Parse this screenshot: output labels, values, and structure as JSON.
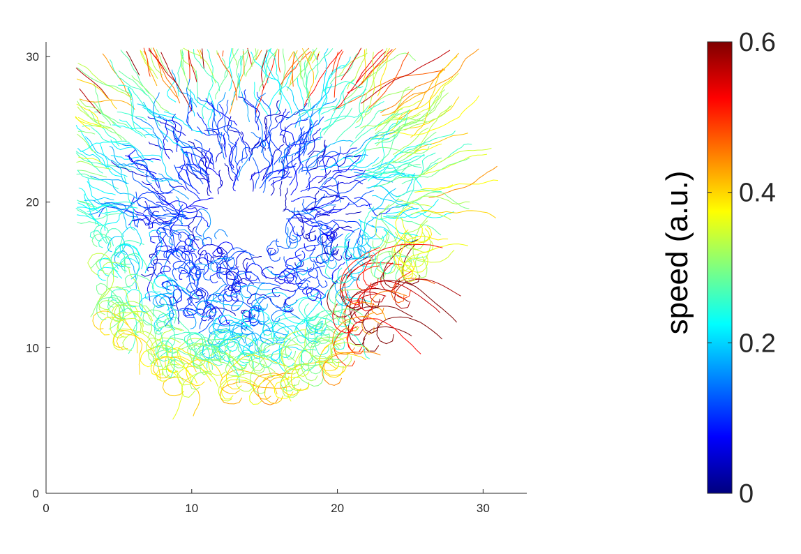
{
  "chart_data": {
    "type": "line",
    "title": "",
    "xlabel": "",
    "ylabel": "",
    "xlim": [
      0,
      33
    ],
    "ylim": [
      0,
      31
    ],
    "x_ticks": [
      0,
      10,
      20,
      30
    ],
    "y_ticks": [
      0,
      10,
      20,
      30
    ],
    "x_tick_labels": [
      "0",
      "10",
      "20",
      "30"
    ],
    "y_tick_labels": [
      "0",
      "10",
      "20",
      "30"
    ],
    "grid": false,
    "box": false,
    "colormap": "jet",
    "colorbar": {
      "label": "speed (a.u.)",
      "range": [
        0,
        0.6
      ],
      "ticks": [
        0,
        0.2,
        0.4,
        0.6
      ],
      "tick_labels": [
        "0",
        "0.2",
        "0.4",
        "0.6"
      ],
      "placement": "right"
    },
    "series_description": "cell trajectories colored by speed",
    "colony_center": [
      13.7,
      18.5
    ],
    "colony_radius": 14.0,
    "trajectory_count": 950
  },
  "colors": {
    "axis": "#262626",
    "background": "#ffffff",
    "jet_stops": [
      "#00007f",
      "#0000ff",
      "#007fff",
      "#00ffff",
      "#7fff7f",
      "#ffff00",
      "#ff7f00",
      "#ff0000",
      "#7f0000"
    ]
  }
}
